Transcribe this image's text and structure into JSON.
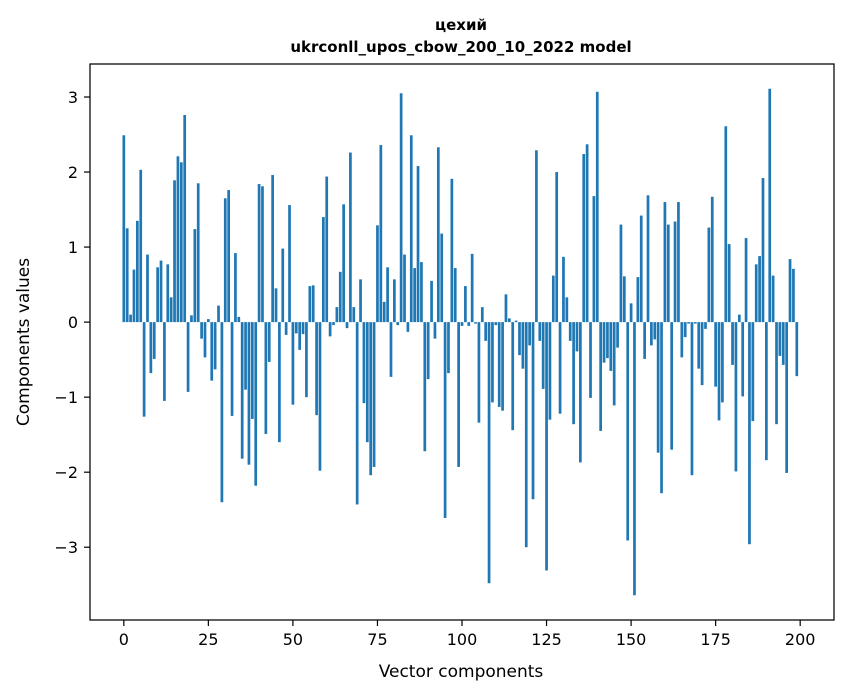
{
  "chart_data": {
    "type": "bar",
    "title": "цехий",
    "subtitle": "ukrconll_upos_cbow_200_10_2022 model",
    "xlabel": "Vector components",
    "ylabel": "Components values",
    "xlim": [
      -10,
      210
    ],
    "ylim": [
      -3.97,
      3.44
    ],
    "xticks": [
      0,
      25,
      50,
      75,
      100,
      125,
      150,
      175,
      200
    ],
    "xtick_labels": [
      "0",
      "25",
      "50",
      "75",
      "100",
      "125",
      "150",
      "175",
      "200"
    ],
    "yticks": [
      -3,
      -2,
      -1,
      0,
      1,
      2,
      3
    ],
    "ytick_labels": [
      "−3",
      "−2",
      "−1",
      "0",
      "1",
      "2",
      "3"
    ],
    "grid": false,
    "bar_color": "#1f77b4",
    "x": [
      0,
      1,
      2,
      3,
      4,
      5,
      6,
      7,
      8,
      9,
      10,
      11,
      12,
      13,
      14,
      15,
      16,
      17,
      18,
      19,
      20,
      21,
      22,
      23,
      24,
      25,
      26,
      27,
      28,
      29,
      30,
      31,
      32,
      33,
      34,
      35,
      36,
      37,
      38,
      39,
      40,
      41,
      42,
      43,
      44,
      45,
      46,
      47,
      48,
      49,
      50,
      51,
      52,
      53,
      54,
      55,
      56,
      57,
      58,
      59,
      60,
      61,
      62,
      63,
      64,
      65,
      66,
      67,
      68,
      69,
      70,
      71,
      72,
      73,
      74,
      75,
      76,
      77,
      78,
      79,
      80,
      81,
      82,
      83,
      84,
      85,
      86,
      87,
      88,
      89,
      90,
      91,
      92,
      93,
      94,
      95,
      96,
      97,
      98,
      99,
      100,
      101,
      102,
      103,
      104,
      105,
      106,
      107,
      108,
      109,
      110,
      111,
      112,
      113,
      114,
      115,
      116,
      117,
      118,
      119,
      120,
      121,
      122,
      123,
      124,
      125,
      126,
      127,
      128,
      129,
      130,
      131,
      132,
      133,
      134,
      135,
      136,
      137,
      138,
      139,
      140,
      141,
      142,
      143,
      144,
      145,
      146,
      147,
      148,
      149,
      150,
      151,
      152,
      153,
      154,
      155,
      156,
      157,
      158,
      159,
      160,
      161,
      162,
      163,
      164,
      165,
      166,
      167,
      168,
      169,
      170,
      171,
      172,
      173,
      174,
      175,
      176,
      177,
      178,
      179,
      180,
      181,
      182,
      183,
      184,
      185,
      186,
      187,
      188,
      189,
      190,
      191,
      192,
      193,
      194,
      195,
      196,
      197,
      198,
      199
    ],
    "values": [
      2.49,
      1.25,
      0.1,
      0.7,
      1.35,
      2.03,
      -1.26,
      0.9,
      -0.68,
      -0.49,
      0.73,
      0.82,
      -1.05,
      0.77,
      0.33,
      1.89,
      2.21,
      2.13,
      2.76,
      -0.93,
      0.09,
      1.24,
      1.85,
      -0.22,
      -0.47,
      0.04,
      -0.78,
      -0.63,
      0.22,
      -2.4,
      1.65,
      1.76,
      -1.25,
      0.92,
      0.07,
      -1.82,
      -0.9,
      -1.9,
      -1.29,
      -2.18,
      1.84,
      1.81,
      -1.49,
      -0.53,
      1.96,
      0.45,
      -1.6,
      0.98,
      -0.17,
      1.56,
      -1.1,
      -0.15,
      -0.37,
      -0.16,
      -1.0,
      0.48,
      0.49,
      -1.24,
      -1.98,
      1.4,
      1.94,
      -0.19,
      -0.04,
      0.2,
      0.67,
      1.57,
      -0.08,
      2.26,
      0.2,
      -2.43,
      0.57,
      -1.08,
      -1.6,
      -2.04,
      -1.93,
      1.29,
      2.36,
      0.27,
      0.73,
      -0.73,
      0.57,
      -0.04,
      3.05,
      0.9,
      -0.13,
      2.49,
      0.72,
      2.08,
      0.8,
      -1.72,
      -0.76,
      0.55,
      -0.22,
      2.33,
      1.18,
      -2.61,
      -0.68,
      1.91,
      0.72,
      -1.93,
      -0.05,
      0.48,
      -0.05,
      0.91,
      -0.02,
      -1.34,
      0.2,
      -0.25,
      -3.48,
      -1.07,
      -0.04,
      -1.13,
      -1.18,
      0.37,
      0.05,
      -1.44,
      0.02,
      -0.44,
      -0.62,
      -3.0,
      -0.31,
      -2.36,
      2.29,
      -0.25,
      -0.89,
      -3.31,
      -1.3,
      0.62,
      2.0,
      -1.22,
      0.87,
      0.33,
      -0.25,
      -1.36,
      -0.39,
      -1.87,
      2.24,
      2.37,
      -1.01,
      1.68,
      3.07,
      -1.45,
      -0.54,
      -0.48,
      -0.65,
      -1.11,
      -0.34,
      1.3,
      0.61,
      -2.91,
      0.25,
      -3.64,
      0.6,
      1.42,
      -0.49,
      1.69,
      -0.31,
      -0.23,
      -1.74,
      -2.28,
      1.6,
      1.3,
      -1.7,
      1.34,
      1.6,
      -0.47,
      -0.2,
      -0.02,
      -2.04,
      -0.02,
      -0.62,
      -0.84,
      -0.09,
      1.26,
      1.67,
      -0.86,
      -1.31,
      -1.07,
      2.61,
      1.04,
      -0.57,
      -1.99,
      0.1,
      -0.99,
      1.12,
      -2.96,
      -1.32,
      0.77,
      0.88,
      1.92,
      -1.84,
      3.11,
      0.62,
      -1.36,
      -0.45,
      -0.57,
      -2.01,
      0.84,
      0.71,
      -0.72
    ]
  }
}
